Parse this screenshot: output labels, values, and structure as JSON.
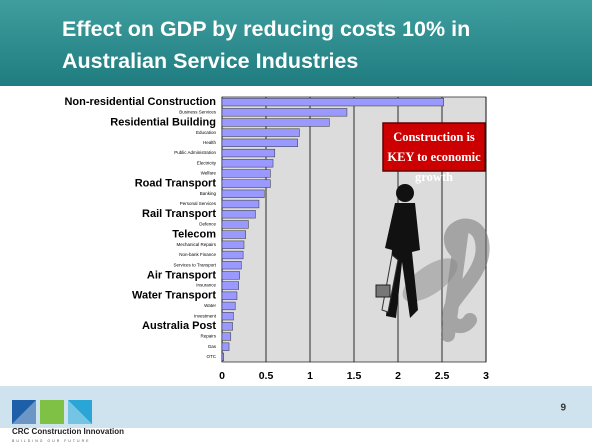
{
  "chart_data": {
    "type": "barh",
    "title": "Effect on GDP by reducing costs 10% in Australian Service Industries",
    "categories": [
      "Non-residential Construction",
      "Business Services",
      "Residential Building",
      "Education",
      "Health",
      "Public Administration",
      "Electricity",
      "Welfare",
      "Road Transport",
      "Banking",
      "Personal Services",
      "Rail Transport",
      "Defence",
      "Telecom",
      "Mechanical Repairs",
      "Non-bank Finance",
      "Services to Transport",
      "Air Transport",
      "Insurance",
      "Water Transport",
      "Water",
      "Investment",
      "Australia Post",
      "Repairs",
      "Gas",
      "OTC"
    ],
    "values": [
      2.52,
      1.42,
      1.22,
      0.88,
      0.86,
      0.6,
      0.58,
      0.55,
      0.55,
      0.48,
      0.42,
      0.38,
      0.3,
      0.27,
      0.25,
      0.24,
      0.22,
      0.2,
      0.19,
      0.17,
      0.15,
      0.13,
      0.12,
      0.1,
      0.08,
      0.02
    ],
    "highlight": [
      0,
      2,
      8,
      11,
      13,
      17,
      19,
      22
    ],
    "color": "#9999ff",
    "xlim": [
      0,
      3
    ],
    "xticks": [
      0,
      0.5,
      1,
      1.5,
      2,
      2.5,
      3
    ],
    "grid": true,
    "annotation": "Construction is KEY to economic growth"
  },
  "footer": {
    "slide_number": "9",
    "logo": "CRC Construction Innovation",
    "tagline": "BUILDING OUR FUTURE"
  }
}
